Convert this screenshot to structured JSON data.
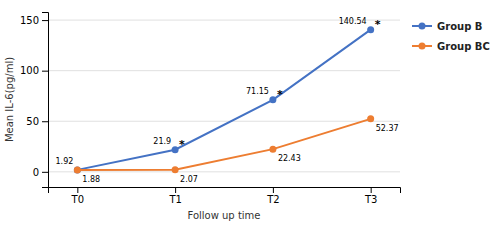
{
  "chart_data": {
    "type": "line",
    "xlabel": "Follow up time",
    "ylabel": "Mean IL-6(pg/ml)",
    "categories": [
      "T0",
      "T1",
      "T2",
      "T3"
    ],
    "series": [
      {
        "name": "Group B",
        "color": "#4472C4",
        "marker": "circle",
        "line_style": "solid",
        "values": [
          1.92,
          21.9,
          71.15,
          140.54
        ]
      },
      {
        "name": "Group BC",
        "color": "#ED7D31",
        "marker": "circle",
        "line_style": "solid",
        "values": [
          1.88,
          2.07,
          22.43,
          52.37
        ]
      }
    ],
    "annotations": [
      {
        "text": "*",
        "x": "T1",
        "y": 21.9
      },
      {
        "text": "*",
        "x": "T2",
        "y": 71.15
      },
      {
        "text": "*",
        "x": "T3",
        "y": 140.54
      }
    ],
    "ylim": [
      -15,
      158
    ],
    "yticks": [
      0,
      50,
      100,
      150
    ],
    "grid": true,
    "legend": "right",
    "data_labels": true
  }
}
